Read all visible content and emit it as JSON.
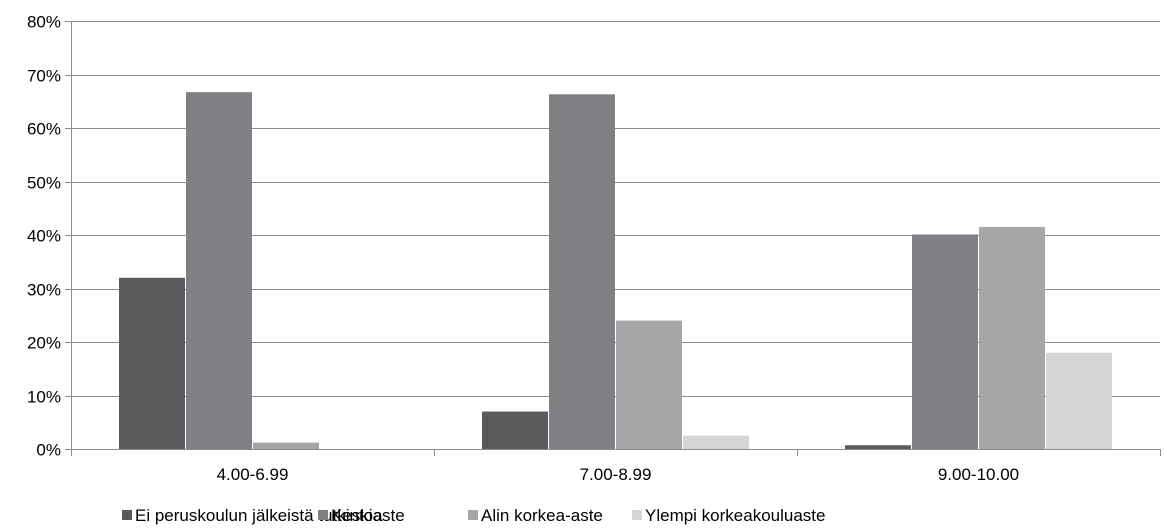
{
  "chart_data": {
    "type": "bar",
    "categories": [
      "4.00-6.99",
      "7.00-8.99",
      "9.00-10.00"
    ],
    "series": [
      {
        "name": "Ei peruskoulun jälkeistä tutkintoa",
        "color": "#5a5a5c",
        "values": [
          0.32,
          0.07,
          0.007
        ]
      },
      {
        "name": "Keskiaste",
        "color": "#7f8083",
        "values": [
          0.667,
          0.663,
          0.401
        ]
      },
      {
        "name": "Alin korkea-aste",
        "color": "#a5a6a8",
        "values": [
          0.012,
          0.24,
          0.415
        ]
      },
      {
        "name": "Ylempi korkeakouluaste",
        "color": "#d4d5d7",
        "values": [
          0.0,
          0.025,
          0.18
        ]
      }
    ],
    "yticks": [
      "0%",
      "10%",
      "20%",
      "30%",
      "40%",
      "50%",
      "60%",
      "70%",
      "80%"
    ],
    "ylim": [
      0,
      0.8
    ],
    "grid": true,
    "legend": "bottom"
  }
}
